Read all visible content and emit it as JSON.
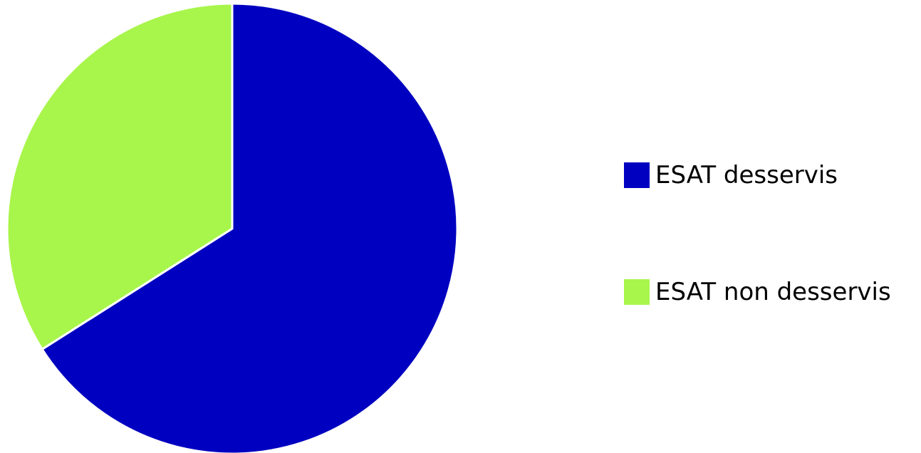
{
  "chart_data": {
    "type": "pie",
    "title": "",
    "slices": [
      {
        "label": "ESAT desservis",
        "value": 66,
        "color": "#0000C0"
      },
      {
        "label": "ESAT non desservis",
        "value": 34,
        "color": "#A8F54B"
      }
    ],
    "legend_position": "right"
  }
}
